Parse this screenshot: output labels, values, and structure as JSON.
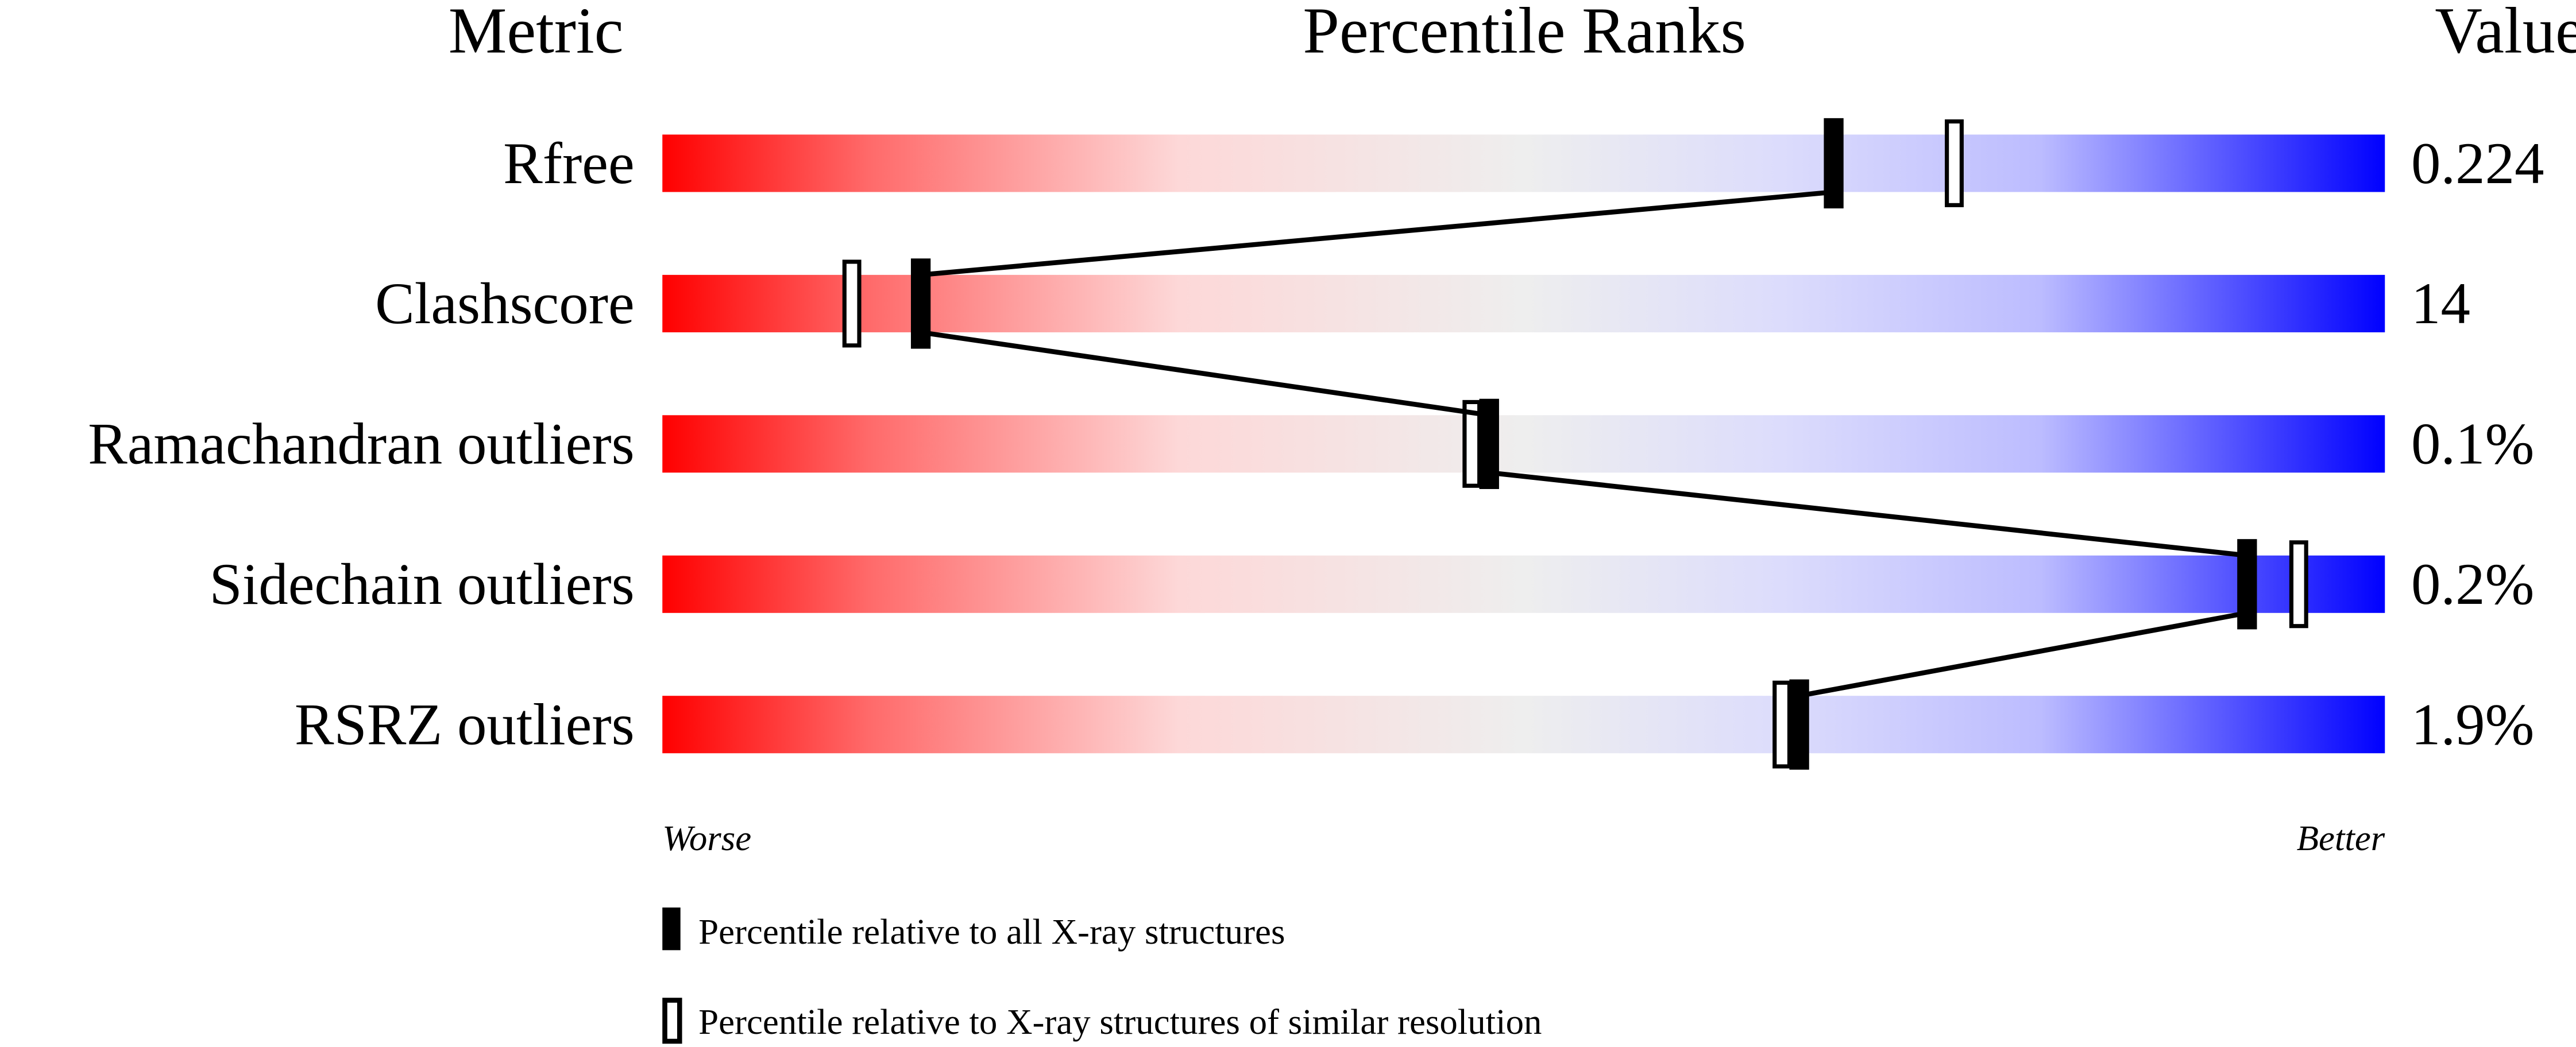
{
  "chart_data": {
    "type": "percentile-slider",
    "headers": {
      "metric": "Metric",
      "ranks": "Percentile Ranks",
      "value": "Value"
    },
    "xlim": [
      0,
      100
    ],
    "axis_labels": {
      "left": "Worse",
      "right": "Better"
    },
    "colors": {
      "worse": "#ff0000",
      "middle": "#eeeeee",
      "better": "#0000ff"
    },
    "metrics": [
      {
        "name": "Rfree",
        "value": "0.224",
        "percentile_all": 68,
        "percentile_similar": 75
      },
      {
        "name": "Clashscore",
        "value": "14",
        "percentile_all": 15,
        "percentile_similar": 11
      },
      {
        "name": "Ramachandran outliers",
        "value": "0.1%",
        "percentile_all": 48,
        "percentile_similar": 47
      },
      {
        "name": "Sidechain outliers",
        "value": "0.2%",
        "percentile_all": 92,
        "percentile_similar": 95
      },
      {
        "name": "RSRZ outliers",
        "value": "1.9%",
        "percentile_all": 66,
        "percentile_similar": 65
      }
    ],
    "legend": [
      {
        "marker": "filled",
        "label": "Percentile relative to all X-ray structures"
      },
      {
        "marker": "open",
        "label": "Percentile relative to X-ray structures of similar resolution"
      }
    ]
  }
}
